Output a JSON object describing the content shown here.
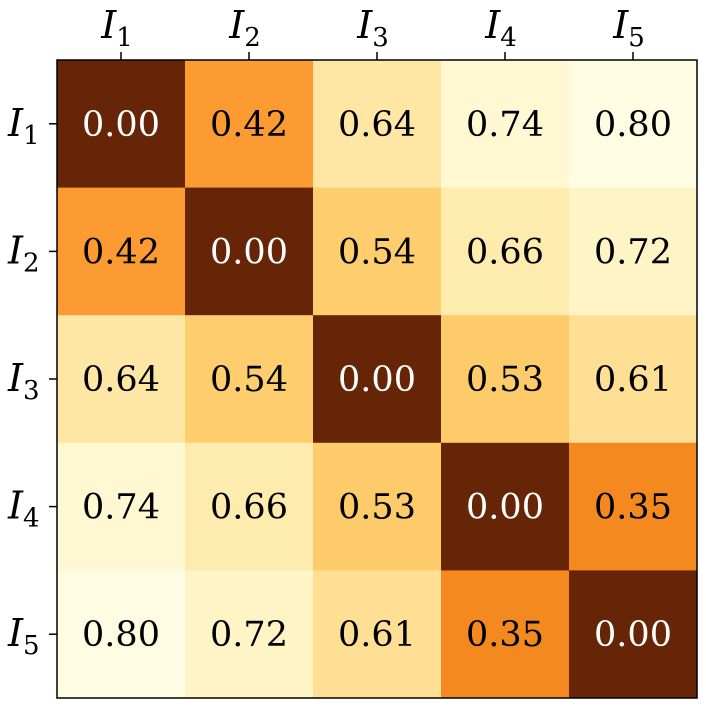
{
  "chart_data": {
    "type": "heatmap",
    "title": "",
    "xlabel": "",
    "ylabel": "",
    "columns": [
      {
        "base": "I",
        "sub": "1"
      },
      {
        "base": "I",
        "sub": "2"
      },
      {
        "base": "I",
        "sub": "3"
      },
      {
        "base": "I",
        "sub": "4"
      },
      {
        "base": "I",
        "sub": "5"
      }
    ],
    "rows": [
      {
        "base": "I",
        "sub": "1"
      },
      {
        "base": "I",
        "sub": "2"
      },
      {
        "base": "I",
        "sub": "3"
      },
      {
        "base": "I",
        "sub": "4"
      },
      {
        "base": "I",
        "sub": "5"
      }
    ],
    "values": [
      [
        0.0,
        0.42,
        0.64,
        0.74,
        0.8
      ],
      [
        0.42,
        0.0,
        0.54,
        0.66,
        0.72
      ],
      [
        0.64,
        0.54,
        0.0,
        0.53,
        0.61
      ],
      [
        0.74,
        0.66,
        0.53,
        0.0,
        0.35
      ],
      [
        0.8,
        0.72,
        0.61,
        0.35,
        0.0
      ]
    ],
    "value_format_decimals": 2,
    "colormap": "YlOrBr",
    "color_scale": "reversed: low values dark brown, high values pale yellow",
    "color_stops": [
      {
        "value": 0.0,
        "color": "#662506"
      },
      {
        "value": 0.35,
        "color": "#f3891f"
      },
      {
        "value": 0.42,
        "color": "#fc9b31"
      },
      {
        "value": 0.53,
        "color": "#fecb6a"
      },
      {
        "value": 0.54,
        "color": "#fecd6e"
      },
      {
        "value": 0.61,
        "color": "#fedf94"
      },
      {
        "value": 0.64,
        "color": "#fee7a5"
      },
      {
        "value": 0.66,
        "color": "#feebae"
      },
      {
        "value": 0.72,
        "color": "#fff4c6"
      },
      {
        "value": 0.74,
        "color": "#fff8d2"
      },
      {
        "value": 0.8,
        "color": "#fffce4"
      }
    ],
    "text_color_dark_cells": "#ffffff",
    "text_color_light_cells": "#000000",
    "x_ticks_position": "top",
    "grid": false,
    "legend": "none"
  }
}
